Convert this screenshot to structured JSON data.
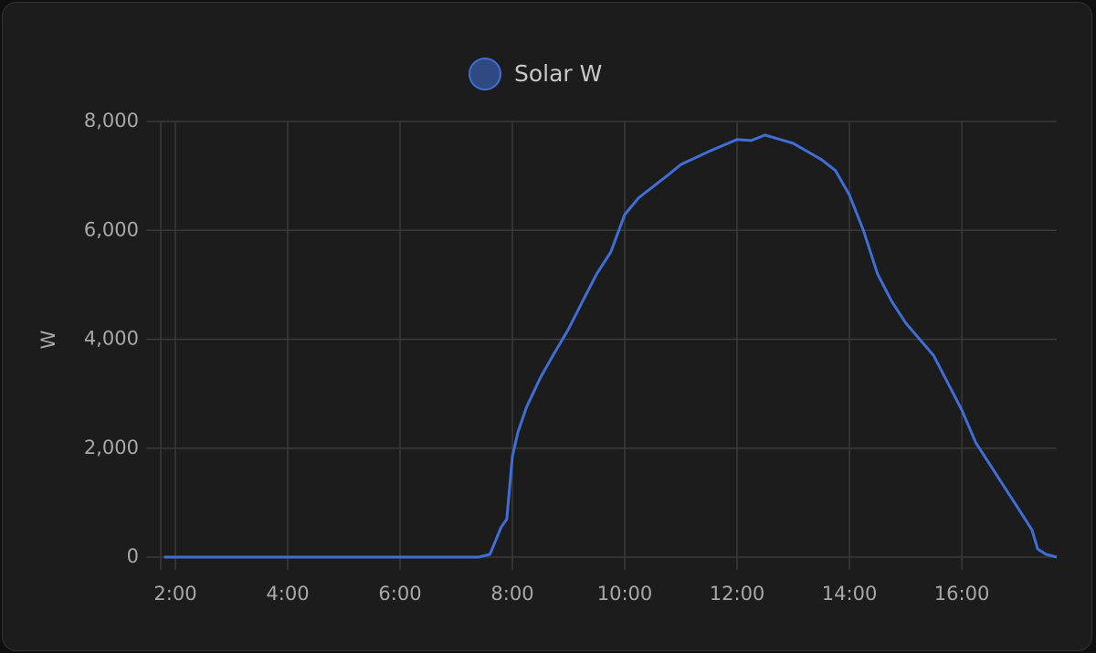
{
  "chart_data": {
    "type": "line",
    "y_label": "W",
    "x": [
      1.8,
      7.4,
      7.6,
      7.7,
      7.8,
      7.9,
      8.0,
      8.1,
      8.25,
      8.5,
      8.75,
      9.0,
      9.25,
      9.5,
      9.75,
      10.0,
      10.25,
      10.5,
      10.75,
      11.0,
      11.5,
      12.0,
      12.25,
      12.5,
      13.0,
      13.5,
      13.75,
      14.0,
      14.25,
      14.5,
      14.75,
      15.0,
      15.5,
      15.75,
      16.0,
      16.25,
      16.5,
      16.75,
      17.0,
      17.25,
      17.35,
      17.5,
      17.69
    ],
    "series": [
      {
        "name": "Solar W",
        "color": "#3f6fd6",
        "values": [
          0,
          0,
          50,
          300,
          550,
          700,
          1850,
          2300,
          2750,
          3300,
          3750,
          4190,
          4700,
          5200,
          5600,
          6290,
          6600,
          6800,
          7000,
          7210,
          7450,
          7670,
          7650,
          7750,
          7600,
          7300,
          7100,
          6650,
          6000,
          5200,
          4700,
          4300,
          3700,
          3200,
          2700,
          2100,
          1700,
          1300,
          900,
          500,
          150,
          50,
          0
        ]
      }
    ],
    "xlim": [
      1.74,
      17.69
    ],
    "xticks": [
      {
        "value": 2,
        "label": "2:00"
      },
      {
        "value": 4,
        "label": "4:00"
      },
      {
        "value": 6,
        "label": "6:00"
      },
      {
        "value": 8,
        "label": "8:00"
      },
      {
        "value": 10,
        "label": "10:00"
      },
      {
        "value": 12,
        "label": "12:00"
      },
      {
        "value": 14,
        "label": "14:00"
      },
      {
        "value": 16,
        "label": "16:00"
      }
    ],
    "ylim": [
      0,
      8000
    ],
    "yticks": [
      0,
      {
        "value": 2000,
        "label": "2,000"
      },
      {
        "value": 4000,
        "label": "4,000"
      },
      {
        "value": 6000,
        "label": "6,000"
      },
      {
        "value": 8000,
        "label": "8,000"
      }
    ],
    "grid": true
  }
}
